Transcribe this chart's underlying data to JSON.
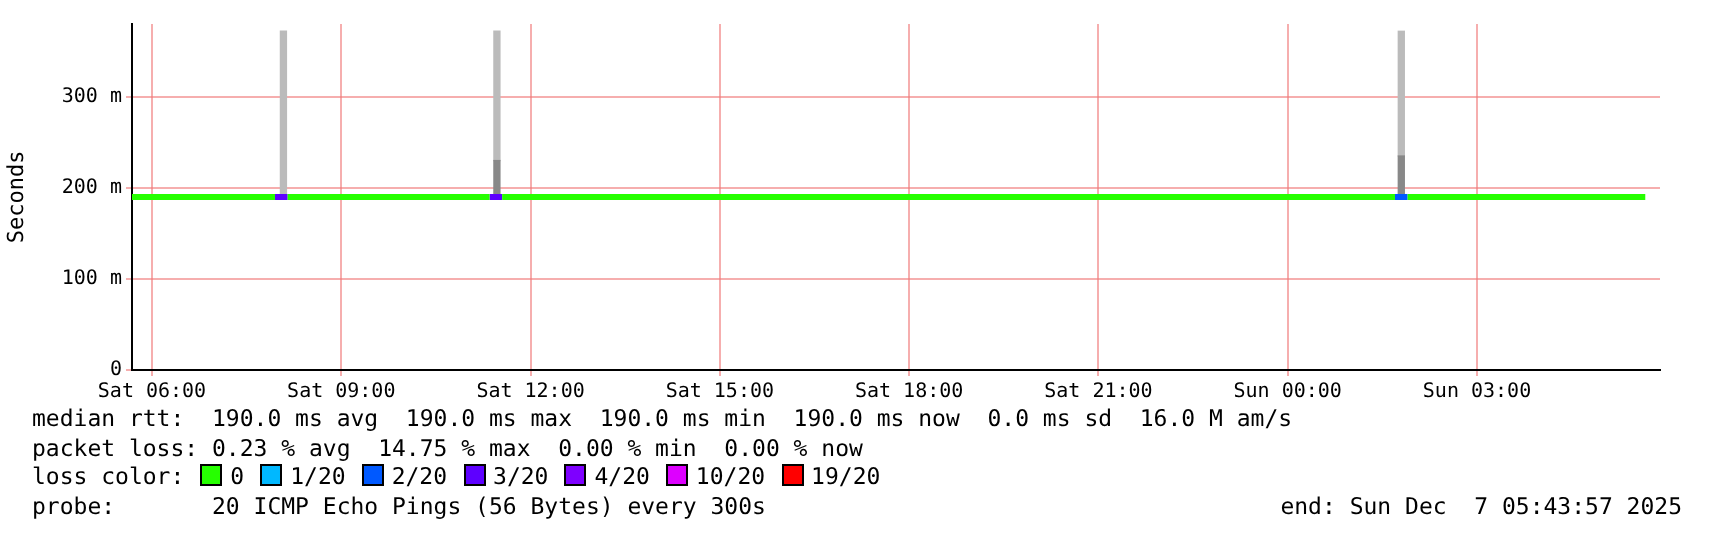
{
  "chart_data": {
    "type": "line",
    "ylabel": "Seconds",
    "legend_title": "loss color:",
    "legend": "bottom",
    "marker": "none",
    "line_style": "solid",
    "grid": true,
    "xlim": [
      "2025-12-06T05:41",
      "2025-12-07T05:54"
    ],
    "xticks": [
      {
        "value": "2025-12-06T06:00",
        "label": "Sat 06:00"
      },
      {
        "value": "2025-12-06T09:00",
        "label": "Sat 09:00"
      },
      {
        "value": "2025-12-06T12:00",
        "label": "Sat 12:00"
      },
      {
        "value": "2025-12-06T15:00",
        "label": "Sat 15:00"
      },
      {
        "value": "2025-12-06T18:00",
        "label": "Sat 18:00"
      },
      {
        "value": "2025-12-06T21:00",
        "label": "Sat 21:00"
      },
      {
        "value": "2025-12-07T00:00",
        "label": "Sun 00:00"
      },
      {
        "value": "2025-12-07T03:00",
        "label": "Sun 03:00"
      }
    ],
    "ylim": [
      0,
      380
    ],
    "yticks": [
      {
        "value": 0,
        "label": "0"
      },
      {
        "value": 100,
        "label": "100 m"
      },
      {
        "value": 200,
        "label": "200 m"
      },
      {
        "value": 300,
        "label": "300 m"
      }
    ],
    "series": [
      {
        "type": "bar",
        "color": "#888888",
        "x": [
          "2025-12-06T11:28",
          "2025-12-07T01:48"
        ],
        "base": [
          190,
          190
        ],
        "values": [
          40,
          45
        ]
      },
      {
        "type": "bar",
        "color": "#bbbbbb",
        "x": [
          "2025-12-06T08:05",
          "2025-12-06T11:28",
          "2025-12-07T01:48"
        ],
        "base": [
          190,
          230,
          235
        ],
        "values": [
          182,
          142,
          137
        ]
      },
      {
        "name": "0",
        "color": "#26ff00",
        "x": [
          "2025-12-06T05:41",
          "2025-12-06T07:57",
          "2025-12-06T08:03",
          "2025-12-06T08:09",
          "2025-12-06T11:21",
          "2025-12-06T11:27",
          "2025-12-06T11:33",
          "2025-12-07T01:42",
          "2025-12-07T01:48",
          "2025-12-07T01:54",
          "2025-12-07T05:40"
        ],
        "values": [
          190,
          190,
          null,
          190,
          190,
          null,
          190,
          190,
          null,
          190,
          190
        ]
      },
      {
        "name": "1/20",
        "color": "#00b8ff"
      },
      {
        "name": "2/20",
        "color": "#0059ff",
        "x": [
          "2025-12-07T01:42",
          "2025-12-07T01:54"
        ],
        "values": [
          190,
          190
        ]
      },
      {
        "name": "3/20",
        "color": "#5e00ff",
        "x": [
          "2025-12-06T07:57",
          "2025-12-06T08:09",
          "2025-12-06T08:12",
          "2025-12-06T11:21",
          "2025-12-06T11:33"
        ],
        "values": [
          190,
          190,
          null,
          190,
          190
        ]
      },
      {
        "name": "4/20",
        "color": "#7e00ff"
      },
      {
        "name": "10/20",
        "color": "#dd00ff"
      },
      {
        "name": "19/20",
        "color": "#ff0000"
      }
    ],
    "annotations": [
      "median rtt:  190.0 ms avg  190.0 ms max  190.0 ms min  190.0 ms now  0.0 ms sd  16.0 M am/s",
      "packet loss: 0.23 % avg  14.75 % max  0.00 % min  0.00 % now",
      "probe:       20 ICMP Echo Pings (56 Bytes) every 300s",
      "end: Sun Dec  7 05:43:57 2025"
    ]
  }
}
